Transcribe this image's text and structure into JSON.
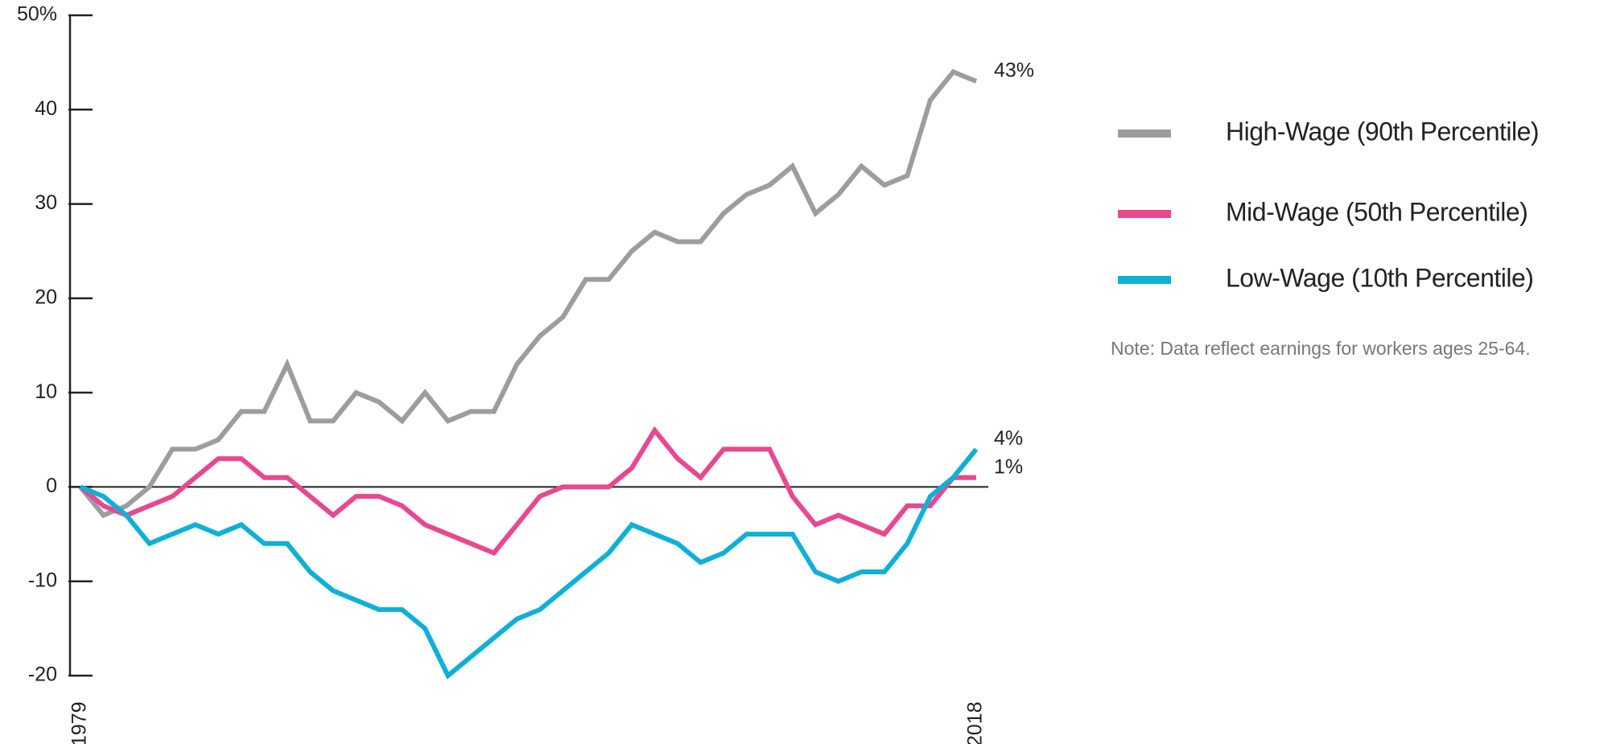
{
  "chart_data": {
    "type": "line",
    "categories": [
      "1979",
      null,
      null,
      null,
      null,
      null,
      null,
      null,
      null,
      null,
      null,
      null,
      null,
      null,
      null,
      null,
      null,
      null,
      null,
      null,
      null,
      null,
      null,
      null,
      null,
      null,
      null,
      null,
      null,
      null,
      null,
      null,
      null,
      null,
      null,
      null,
      null,
      null,
      null,
      "2018"
    ],
    "series": [
      {
        "name": "High-Wage (90th Percentile)",
        "color": "#9d9ca1",
        "values": [
          0,
          -3,
          -2,
          0,
          4,
          4,
          5,
          8,
          8,
          13,
          7,
          7,
          10,
          9,
          7,
          10,
          7,
          8,
          8,
          13,
          16,
          18,
          22,
          22,
          25,
          27,
          26,
          26,
          29,
          31,
          32,
          34,
          29,
          31,
          34,
          32,
          33,
          41,
          44,
          43
        ],
        "value_labels": [
          null,
          null,
          null,
          null,
          null,
          null,
          null,
          null,
          null,
          null,
          null,
          null,
          null,
          null,
          null,
          null,
          null,
          null,
          null,
          null,
          null,
          null,
          null,
          null,
          null,
          null,
          null,
          null,
          null,
          null,
          null,
          null,
          null,
          null,
          null,
          null,
          null,
          null,
          null,
          "43%"
        ]
      },
      {
        "name": "Mid-Wage (50th Percentile)",
        "color": "#e8488f",
        "values": [
          0,
          -2,
          -3,
          -2,
          -1,
          1,
          3,
          3,
          1,
          1,
          -1,
          -3,
          -1,
          -1,
          -2,
          -4,
          -5,
          -6,
          -7,
          -4,
          -1,
          0,
          0,
          0,
          2,
          6,
          3,
          1,
          4,
          4,
          4,
          -1,
          -4,
          -3,
          -4,
          -5,
          -2,
          -2,
          1,
          1
        ],
        "value_labels": [
          null,
          null,
          null,
          null,
          null,
          null,
          null,
          null,
          null,
          null,
          null,
          null,
          null,
          null,
          null,
          null,
          null,
          null,
          null,
          null,
          null,
          null,
          null,
          null,
          null,
          null,
          null,
          null,
          null,
          null,
          null,
          null,
          null,
          null,
          null,
          null,
          null,
          null,
          null,
          "1%"
        ]
      },
      {
        "name": "Low-Wage (10th Percentile)",
        "color": "#10b0d6",
        "values": [
          0,
          -1,
          -3,
          -6,
          -5,
          -4,
          -5,
          -4,
          -6,
          -6,
          -9,
          -11,
          -12,
          -13,
          -13,
          -15,
          -20,
          -18,
          -16,
          -14,
          -13,
          -11,
          -9,
          -7,
          -4,
          -5,
          -6,
          -8,
          -7,
          -5,
          -5,
          -5,
          -9,
          -10,
          -9,
          -9,
          -6,
          -1,
          1,
          4
        ],
        "value_labels": [
          null,
          null,
          null,
          null,
          null,
          null,
          null,
          null,
          null,
          null,
          null,
          null,
          null,
          null,
          null,
          null,
          null,
          null,
          null,
          null,
          null,
          null,
          null,
          null,
          null,
          null,
          null,
          null,
          null,
          null,
          null,
          null,
          null,
          null,
          null,
          null,
          null,
          null,
          null,
          "4%"
        ]
      }
    ],
    "ylim": [
      -20,
      50
    ],
    "yticks": [
      -20,
      -10,
      0,
      10,
      20,
      30,
      40,
      {
        "value": 50,
        "label": "50%"
      }
    ],
    "legend": "right",
    "note": "Note: Data reflect earnings for workers ages 25-64."
  }
}
